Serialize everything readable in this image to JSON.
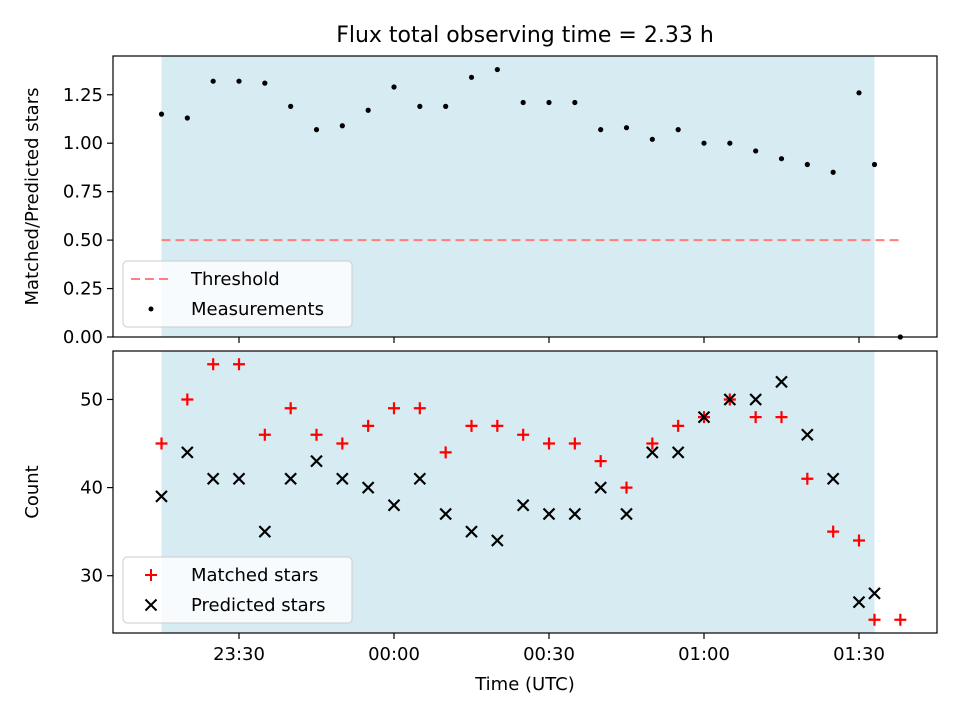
{
  "title": "Flux total observing time = 2.33 h",
  "colors": {
    "shade": "#add8e6",
    "threshold": "#ff7f7f",
    "matched": "#ff0000",
    "predicted": "#000000",
    "measure": "#000000"
  },
  "chart_data": [
    {
      "type": "scatter",
      "ylabel": "Matched/Predicted stars",
      "ylim": [
        0,
        1.45
      ],
      "yticks": [
        0,
        0.25,
        0.5,
        0.75,
        1.0,
        1.25
      ],
      "ytick_labels": [
        "0.00",
        "0.25",
        "0.50",
        "0.75",
        "1.00",
        "1.25"
      ],
      "shaded_span": [
        "23:15",
        "01:33"
      ],
      "xtick_labels_shown": false,
      "threshold": {
        "name": "Threshold",
        "value": 0.5,
        "x_range": [
          "23:15",
          "01:38"
        ],
        "style": "dashed"
      },
      "series": [
        {
          "name": "Measurements",
          "marker": "dot",
          "x": [
            "23:15",
            "23:20",
            "23:25",
            "23:30",
            "23:35",
            "23:40",
            "23:45",
            "23:50",
            "23:55",
            "00:00",
            "00:05",
            "00:10",
            "00:15",
            "00:20",
            "00:25",
            "00:30",
            "00:35",
            "00:40",
            "00:45",
            "00:50",
            "00:55",
            "01:00",
            "01:05",
            "01:10",
            "01:15",
            "01:20",
            "01:25",
            "01:30",
            "01:33",
            "01:38"
          ],
          "y": [
            1.15,
            1.13,
            1.32,
            1.32,
            1.31,
            1.19,
            1.07,
            1.09,
            1.17,
            1.29,
            1.19,
            1.19,
            1.34,
            1.38,
            1.21,
            1.21,
            1.21,
            1.07,
            1.08,
            1.02,
            1.07,
            1.0,
            1.0,
            0.96,
            0.92,
            0.89,
            0.85,
            1.26,
            0.89,
            0.0
          ]
        }
      ],
      "legend": {
        "placement": "lower-left",
        "entries": [
          "Threshold",
          "Measurements"
        ]
      }
    },
    {
      "type": "scatter",
      "xlabel": "Time (UTC)",
      "ylabel": "Count",
      "ylim": [
        23.5,
        55.5
      ],
      "yticks": [
        30,
        40,
        50
      ],
      "ytick_labels": [
        "30",
        "40",
        "50"
      ],
      "shaded_span": [
        "23:15",
        "01:33"
      ],
      "xticks": [
        "23:30",
        "00:00",
        "00:30",
        "01:00",
        "01:30"
      ],
      "series": [
        {
          "name": "Matched stars",
          "marker": "plus",
          "x": [
            "23:15",
            "23:20",
            "23:25",
            "23:30",
            "23:35",
            "23:40",
            "23:45",
            "23:50",
            "23:55",
            "00:00",
            "00:05",
            "00:10",
            "00:15",
            "00:20",
            "00:25",
            "00:30",
            "00:35",
            "00:40",
            "00:45",
            "00:50",
            "00:55",
            "01:00",
            "01:05",
            "01:10",
            "01:15",
            "01:20",
            "01:25",
            "01:30",
            "01:33",
            "01:38"
          ],
          "y": [
            45,
            50,
            54,
            54,
            46,
            49,
            46,
            45,
            47,
            49,
            49,
            44,
            47,
            47,
            46,
            45,
            45,
            43,
            40,
            45,
            47,
            48,
            50,
            48,
            48,
            41,
            35,
            34,
            25,
            25
          ]
        },
        {
          "name": "Predicted stars",
          "marker": "x",
          "x": [
            "23:15",
            "23:20",
            "23:25",
            "23:30",
            "23:35",
            "23:40",
            "23:45",
            "23:50",
            "23:55",
            "00:00",
            "00:05",
            "00:10",
            "00:15",
            "00:20",
            "00:25",
            "00:30",
            "00:35",
            "00:40",
            "00:45",
            "00:50",
            "00:55",
            "01:00",
            "01:05",
            "01:10",
            "01:15",
            "01:20",
            "01:25",
            "01:30",
            "01:33"
          ],
          "y": [
            39,
            44,
            41,
            41,
            35,
            41,
            43,
            41,
            40,
            38,
            41,
            37,
            35,
            34,
            38,
            37,
            37,
            40,
            37,
            44,
            44,
            48,
            50,
            50,
            52,
            46,
            41,
            27,
            28
          ]
        }
      ],
      "legend": {
        "placement": "lower-left",
        "entries": [
          "Matched stars",
          "Predicted stars"
        ]
      }
    }
  ]
}
